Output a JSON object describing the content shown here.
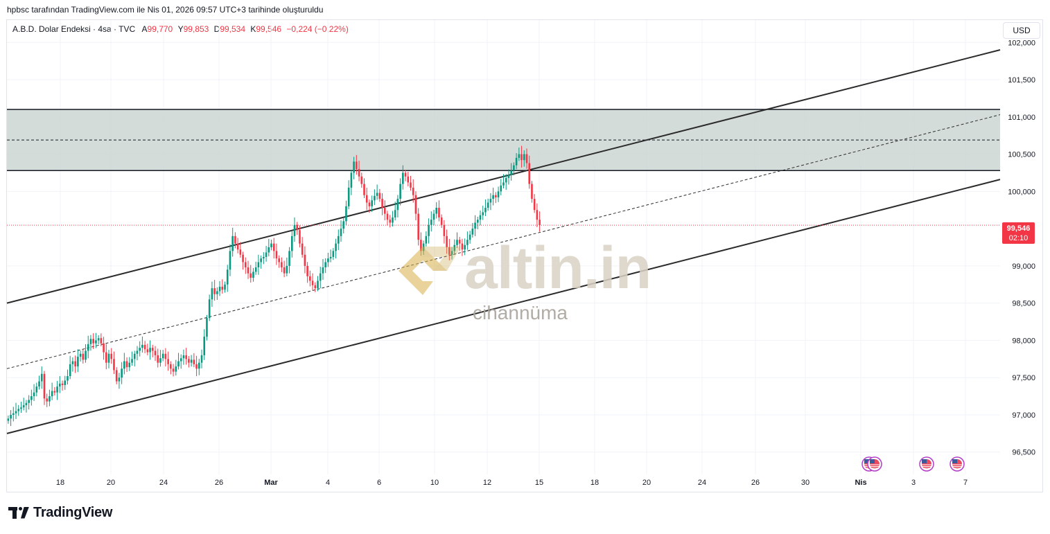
{
  "header": {
    "caption": "hpbsc tarafından TradingView.com ile Nis 01, 2026 09:57 UTC+3 tarihinde oluşturuldu"
  },
  "legend": {
    "title": "A.B.D. Dolar Endeksi · 4sa · TVC",
    "open_label": "A",
    "open": "99,770",
    "high_label": "Y",
    "high": "99,853",
    "low_label": "D",
    "low": "99,534",
    "close_label": "K",
    "close": "99,546",
    "change": "−0,224 (−0,22%)"
  },
  "currency_button": "USD",
  "price_tag": {
    "price": "99,546",
    "countdown": "02:10"
  },
  "watermark": {
    "brand": "altin.in",
    "sub": "cihannüma"
  },
  "footer": {
    "logo_text": "TradingView"
  },
  "colors": {
    "up": "#089981",
    "down": "#f23645",
    "zone": "#c9d3d1",
    "line": "#2b2b2b"
  },
  "icons": [
    "us-flag-event-icon",
    "us-flag-event-icon",
    "us-flag-event-icon",
    "us-flag-event-icon"
  ],
  "chart_data": {
    "type": "candlestick",
    "y_axis": {
      "ticks": [
        "102,000",
        "101,500",
        "101,000",
        "100,500",
        "100,000",
        "99,000",
        "98,500",
        "98,000",
        "97,500",
        "97,000",
        "96,500"
      ],
      "tick_values": [
        102.0,
        101.5,
        101.0,
        100.5,
        100.0,
        99.0,
        98.5,
        98.0,
        97.5,
        97.0,
        96.5
      ],
      "range": [
        96.2,
        102.3
      ]
    },
    "x_axis": {
      "ticks": [
        "18",
        "20",
        "24",
        "26",
        "Mar",
        "4",
        "6",
        "10",
        "12",
        "15",
        "18",
        "20",
        "24",
        "26",
        "30",
        "Nis",
        "3",
        "7"
      ],
      "range_bars": [
        0,
        385
      ]
    },
    "last_price": 99.546,
    "zone": {
      "top": 101.1,
      "bottom": 100.28,
      "mid": 100.69
    },
    "channel": {
      "upper": [
        [
          0,
          98.5
        ],
        [
          385,
          101.9
        ]
      ],
      "lower": [
        [
          0,
          96.75
        ],
        [
          385,
          100.16
        ]
      ],
      "median": [
        [
          0,
          97.62
        ],
        [
          385,
          101.03
        ]
      ]
    },
    "series_close": [
      96.95,
      97.0,
      97.02,
      97.05,
      97.08,
      97.1,
      97.13,
      97.16,
      97.2,
      97.25,
      97.3,
      97.38,
      97.45,
      97.55,
      97.22,
      97.18,
      97.25,
      97.32,
      97.3,
      97.38,
      97.42,
      97.4,
      97.46,
      97.52,
      97.68,
      97.72,
      97.65,
      97.78,
      97.82,
      97.74,
      97.86,
      97.95,
      98.02,
      97.96,
      98.0,
      98.03,
      97.96,
      97.84,
      97.7,
      97.82,
      97.75,
      97.6,
      97.45,
      97.5,
      97.62,
      97.72,
      97.64,
      97.7,
      97.75,
      97.82,
      97.86,
      97.9,
      97.94,
      97.88,
      97.84,
      97.9,
      97.86,
      97.8,
      97.7,
      97.76,
      97.82,
      97.75,
      97.68,
      97.62,
      97.58,
      97.65,
      97.72,
      97.76,
      97.8,
      97.75,
      97.7,
      97.74,
      97.68,
      97.62,
      97.7,
      97.8,
      98.05,
      98.3,
      98.55,
      98.7,
      98.62,
      98.66,
      98.72,
      98.68,
      98.75,
      98.95,
      99.2,
      99.4,
      99.3,
      99.22,
      99.15,
      99.05,
      98.98,
      98.9,
      98.84,
      98.92,
      98.98,
      99.05,
      99.1,
      99.12,
      99.18,
      99.25,
      99.3,
      99.2,
      99.1,
      99.05,
      98.98,
      98.9,
      99.0,
      99.2,
      99.4,
      99.55,
      99.48,
      99.3,
      99.15,
      99.0,
      98.86,
      98.8,
      98.74,
      98.7,
      98.8,
      98.9,
      98.98,
      99.05,
      99.1,
      99.12,
      99.2,
      99.3,
      99.4,
      99.5,
      99.6,
      99.8,
      100.05,
      100.25,
      100.4,
      100.3,
      100.2,
      100.1,
      99.95,
      99.85,
      99.8,
      99.88,
      99.94,
      99.98,
      99.9,
      99.78,
      99.7,
      99.62,
      99.58,
      99.65,
      99.75,
      99.9,
      100.1,
      100.25,
      100.2,
      100.12,
      100.05,
      99.95,
      99.7,
      99.35,
      99.2,
      99.3,
      99.4,
      99.55,
      99.62,
      99.7,
      99.78,
      99.65,
      99.55,
      99.4,
      99.25,
      99.15,
      99.2,
      99.28,
      99.35,
      99.3,
      99.22,
      99.28,
      99.35,
      99.42,
      99.5,
      99.58,
      99.62,
      99.68,
      99.72,
      99.78,
      99.85,
      99.9,
      99.95,
      99.92,
      100.0,
      100.08,
      100.12,
      100.18,
      100.22,
      100.28,
      100.35,
      100.45,
      100.5,
      100.42,
      100.5,
      100.38,
      100.1,
      99.9,
      99.75,
      99.62,
      99.546
    ]
  }
}
